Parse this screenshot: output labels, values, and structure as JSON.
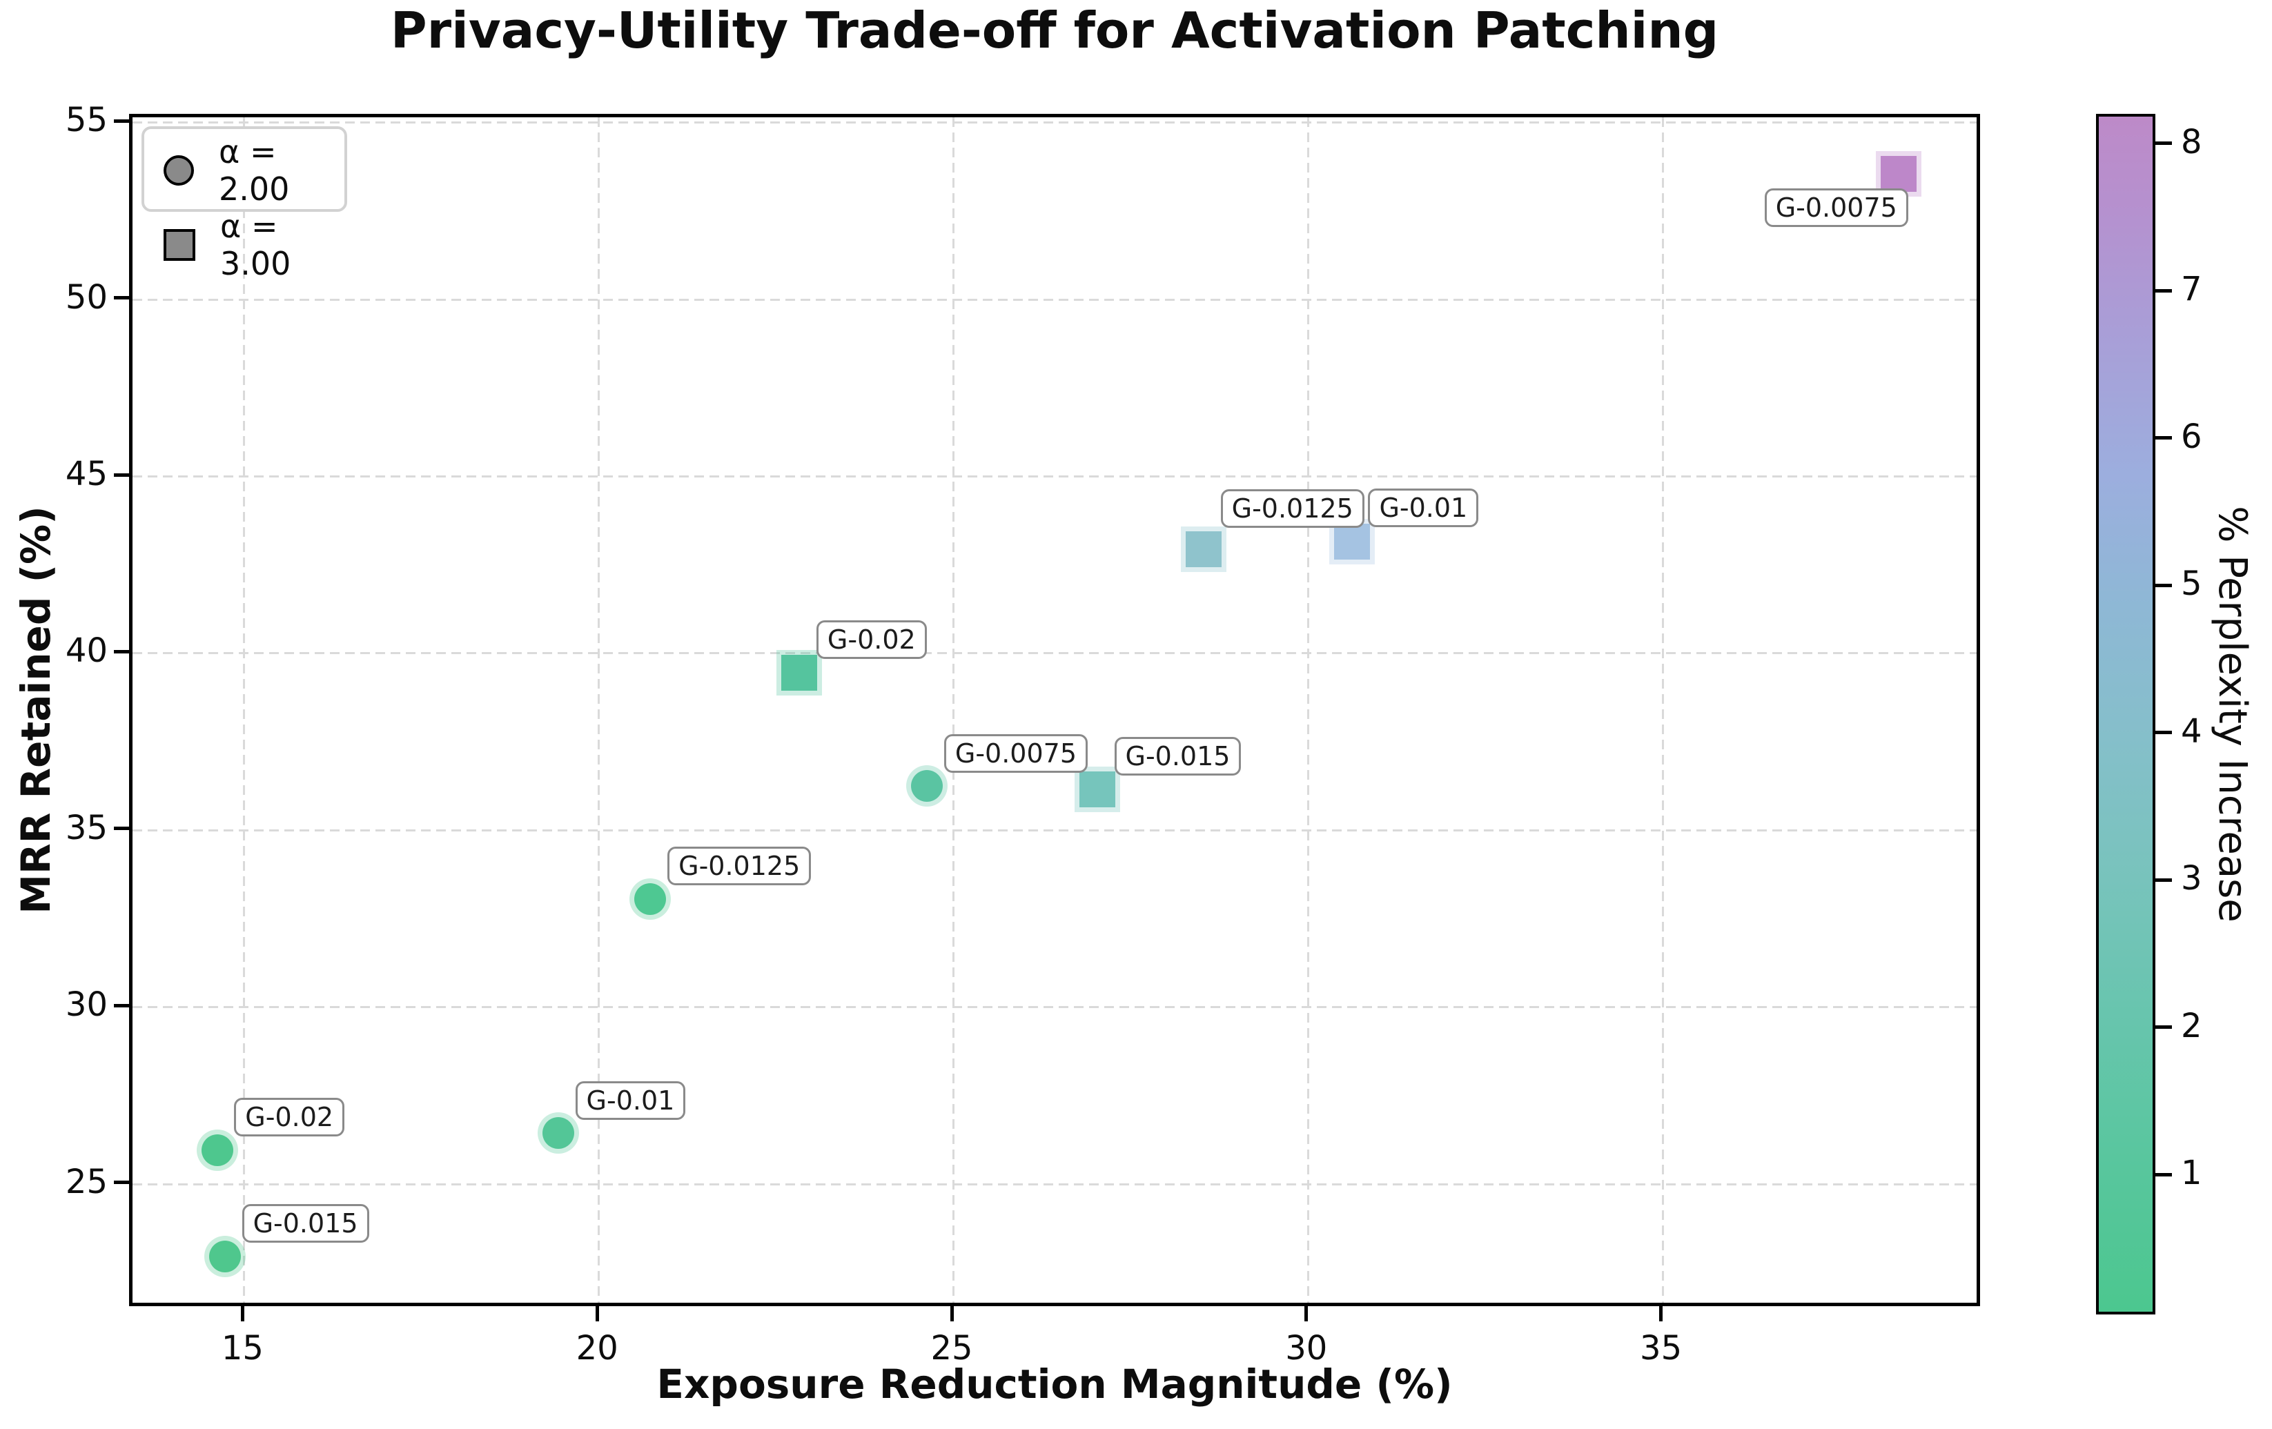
{
  "chart_data": {
    "type": "scatter",
    "title": "Privacy-Utility Trade-off for Activation Patching",
    "xlabel": "Exposure Reduction Magnitude (%)",
    "ylabel": "MRR Retained (%)",
    "xlim": [
      13.4,
      39.5
    ],
    "ylim": [
      21.5,
      55.2
    ],
    "xticks": [
      15,
      20,
      25,
      30,
      35
    ],
    "yticks": [
      25,
      30,
      35,
      40,
      45,
      50,
      55
    ],
    "grid": "dashed",
    "legend": {
      "position": "upper left",
      "entries": [
        {
          "marker": "circle",
          "label": "α = 2.00"
        },
        {
          "marker": "square",
          "label": "α = 3.00"
        }
      ]
    },
    "colorbar": {
      "label": "% Perplexity Increase",
      "ticks": [
        1,
        2,
        3,
        4,
        5,
        6,
        7,
        8
      ],
      "vmin": 0.05,
      "vmax": 8.2,
      "gradient_bottom_to_top": [
        "#4cc78f",
        "#68c5ae",
        "#85bfca",
        "#9caede",
        "#bd8ac8"
      ]
    },
    "series": [
      {
        "name": "α = 2.00",
        "marker": "circle",
        "points": [
          {
            "label": "G-0.02",
            "x": 14.6,
            "y": 26.0,
            "perplexity": 0.3,
            "color": "#4ec78e",
            "label_dx": 24,
            "label_dy": -76
          },
          {
            "label": "G-0.015",
            "x": 14.7,
            "y": 23.0,
            "perplexity": 0.1,
            "color": "#4fc78d",
            "label_dx": 25,
            "label_dy": -76
          },
          {
            "label": "G-0.01",
            "x": 19.4,
            "y": 26.5,
            "perplexity": 0.9,
            "color": "#53c697",
            "label_dx": 25,
            "label_dy": -75
          },
          {
            "label": "G-0.0125",
            "x": 20.7,
            "y": 33.1,
            "perplexity": 0.7,
            "color": "#4ec892",
            "label_dx": 25,
            "label_dy": -76
          },
          {
            "label": "G-0.0075",
            "x": 24.6,
            "y": 36.3,
            "perplexity": 1.6,
            "color": "#5ac4a2",
            "label_dx": 25,
            "label_dy": -75
          }
        ]
      },
      {
        "name": "α = 3.00",
        "marker": "square",
        "points": [
          {
            "label": "G-0.02",
            "x": 22.8,
            "y": 39.5,
            "perplexity": 1.7,
            "color": "#55c49e",
            "label_dx": 25,
            "label_dy": -76
          },
          {
            "label": "G-0.015",
            "x": 27.0,
            "y": 36.2,
            "perplexity": 3.0,
            "color": "#76c5bc",
            "label_dx": 25,
            "label_dy": -76
          },
          {
            "label": "G-0.0125",
            "x": 28.5,
            "y": 43.0,
            "perplexity": 4.3,
            "color": "#8fc3cc",
            "label_dx": 25,
            "label_dy": -87
          },
          {
            "label": "G-0.01",
            "x": 30.6,
            "y": 43.2,
            "perplexity": 5.6,
            "color": "#a5c3e2",
            "label_dx": 23,
            "label_dy": -77
          },
          {
            "label": "G-0.0075",
            "x": 38.3,
            "y": 53.6,
            "perplexity": 8.2,
            "color": "#bd87c9",
            "label_dx": -194,
            "label_dy": 21
          }
        ]
      }
    ]
  }
}
